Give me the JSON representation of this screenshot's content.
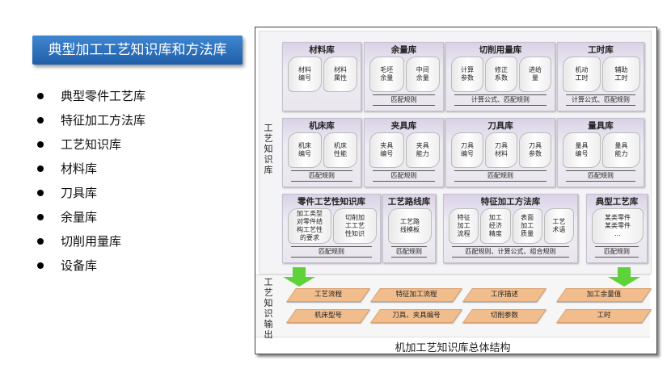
{
  "title": "典型加工工艺知识库和方法库",
  "bullets": [
    "典型零件工艺库",
    "特征加工方法库",
    "工艺知识库",
    "材料库",
    "刀具库",
    "余量库",
    "切削用量库",
    "设备库"
  ],
  "diagram": {
    "left_label_upper": "工艺知识库",
    "left_label_lower": "工艺知识输出",
    "caption": "机加工艺知识库总体结构",
    "libraries": [
      {
        "name": "材料库",
        "items": [
          "材料\n编号",
          "材料\n属性"
        ],
        "rule": ""
      },
      {
        "name": "余量库",
        "items": [
          "毛坯\n余量",
          "中间\n余量"
        ],
        "rule": "匹配规则"
      },
      {
        "name": "切削用量库",
        "items": [
          "计算\n参数",
          "修正\n系数",
          "进给\n量"
        ],
        "rule": "计算公式、匹配规则"
      },
      {
        "name": "工时库",
        "items": [
          "机动\n工时",
          "辅助\n工时"
        ],
        "rule": "计算公式、匹配规则"
      },
      {
        "name": "机床库",
        "items": [
          "机床\n编号",
          "机床\n性能"
        ],
        "rule": "匹配规则"
      },
      {
        "name": "夹具库",
        "items": [
          "夹具\n编号",
          "夹具\n能力"
        ],
        "rule": "匹配规则"
      },
      {
        "name": "刀具库",
        "items": [
          "刀具\n编号",
          "刀具\n材料",
          "刀具\n参数"
        ],
        "rule": "匹配规则"
      },
      {
        "name": "量具库",
        "items": [
          "量具\n编号",
          "量具\n能力"
        ],
        "rule": "匹配规则"
      },
      {
        "name": "零件工艺性知识库",
        "items": [
          "加工类型\n对零件结\n构工艺性\n的要求",
          "切削加\n工工艺\n性知识"
        ],
        "rule": "匹配规则"
      },
      {
        "name": "工艺路线库",
        "items": [
          "工艺路\n线模板"
        ],
        "rule": "匹配规则"
      },
      {
        "name": "特征加工方法库",
        "items": [
          "特征\n加工\n流程",
          "加工\n经济\n精度",
          "表面\n加工\n质量",
          "工艺\n术语"
        ],
        "rule": "匹配规则、计算公式、组合规则"
      },
      {
        "name": "典型工艺库",
        "items": [
          "某类零件\n某类零件\n…"
        ],
        "rule": "匹配规则"
      }
    ],
    "outputs": [
      "工艺流程",
      "特征加工流程",
      "工序描述",
      "加工余量值",
      "机床型号",
      "刀具、夹具编号",
      "切削参数",
      "工时"
    ],
    "colors": {
      "library": "#e6e1ee",
      "output": "#f1bd8d",
      "arrow": "#5fd13a",
      "title_bg": "#2d6fb7"
    }
  }
}
